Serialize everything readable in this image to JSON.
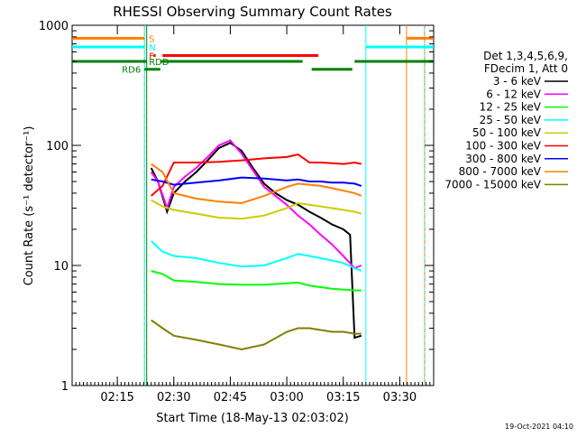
{
  "chart_data": {
    "type": "line",
    "title": "RHESSI Observing Summary Count Rates",
    "xlabel": "Start Time (18-May-13 02:03:02)",
    "ylabel": "Count Rate (s⁻¹ detector⁻¹)",
    "y_scale": "log",
    "ylim": [
      1,
      1000
    ],
    "xlim_minutes": [
      2.05,
      3.65
    ],
    "x_ticks": [
      {
        "value": 2.25,
        "label": "02:15"
      },
      {
        "value": 2.5,
        "label": "02:30"
      },
      {
        "value": 2.75,
        "label": "02:45"
      },
      {
        "value": 3.0,
        "label": "03:00"
      },
      {
        "value": 3.25,
        "label": "03:15"
      },
      {
        "value": 3.5,
        "label": "03:30"
      }
    ],
    "y_ticks": [
      {
        "value": 1,
        "label": "1"
      },
      {
        "value": 10,
        "label": "10"
      },
      {
        "value": 100,
        "label": "100"
      },
      {
        "value": 1000,
        "label": "1000"
      }
    ],
    "legend_header": [
      "Det 1,3,4,5,6,9,",
      "FDecim 1, Att 0"
    ],
    "legend_position": "right",
    "series": [
      {
        "name": "3 - 6 keV",
        "color": "#000000",
        "points": [
          [
            2.4,
            65
          ],
          [
            2.43,
            50
          ],
          [
            2.47,
            28
          ],
          [
            2.5,
            40
          ],
          [
            2.55,
            50
          ],
          [
            2.6,
            60
          ],
          [
            2.65,
            75
          ],
          [
            2.7,
            95
          ],
          [
            2.75,
            105
          ],
          [
            2.8,
            90
          ],
          [
            2.85,
            65
          ],
          [
            2.9,
            48
          ],
          [
            2.95,
            40
          ],
          [
            3.0,
            35
          ],
          [
            3.05,
            32
          ],
          [
            3.1,
            28
          ],
          [
            3.15,
            25
          ],
          [
            3.2,
            22
          ],
          [
            3.25,
            20
          ],
          [
            3.28,
            18
          ],
          [
            3.3,
            2.5
          ],
          [
            3.33,
            2.6
          ]
        ]
      },
      {
        "name": "6 - 12 keV",
        "color": "#ff00ff",
        "points": [
          [
            2.4,
            60
          ],
          [
            2.43,
            50
          ],
          [
            2.47,
            30
          ],
          [
            2.5,
            45
          ],
          [
            2.55,
            55
          ],
          [
            2.6,
            65
          ],
          [
            2.65,
            80
          ],
          [
            2.7,
            100
          ],
          [
            2.75,
            110
          ],
          [
            2.8,
            85
          ],
          [
            2.85,
            62
          ],
          [
            2.9,
            45
          ],
          [
            2.95,
            38
          ],
          [
            3.0,
            32
          ],
          [
            3.05,
            26
          ],
          [
            3.1,
            22
          ],
          [
            3.15,
            18
          ],
          [
            3.2,
            15
          ],
          [
            3.25,
            12
          ],
          [
            3.3,
            9.5
          ],
          [
            3.33,
            10
          ]
        ]
      },
      {
        "name": "12 - 25 keV",
        "color": "#00ff00",
        "points": [
          [
            2.4,
            9
          ],
          [
            2.45,
            8.5
          ],
          [
            2.5,
            7.5
          ],
          [
            2.6,
            7.3
          ],
          [
            2.7,
            7.0
          ],
          [
            2.8,
            6.9
          ],
          [
            2.9,
            6.9
          ],
          [
            3.0,
            7.1
          ],
          [
            3.05,
            7.2
          ],
          [
            3.1,
            6.8
          ],
          [
            3.15,
            6.6
          ],
          [
            3.2,
            6.4
          ],
          [
            3.25,
            6.3
          ],
          [
            3.3,
            6.2
          ],
          [
            3.33,
            6.2
          ]
        ]
      },
      {
        "name": "25 - 50 keV",
        "color": "#00ffff",
        "points": [
          [
            2.4,
            16
          ],
          [
            2.45,
            13
          ],
          [
            2.5,
            12
          ],
          [
            2.6,
            11.5
          ],
          [
            2.7,
            10.5
          ],
          [
            2.8,
            9.8
          ],
          [
            2.9,
            10
          ],
          [
            3.0,
            11.5
          ],
          [
            3.05,
            12.5
          ],
          [
            3.1,
            12
          ],
          [
            3.15,
            11.5
          ],
          [
            3.2,
            11
          ],
          [
            3.25,
            10.5
          ],
          [
            3.3,
            9.5
          ],
          [
            3.33,
            9
          ]
        ]
      },
      {
        "name": "50 - 100 keV",
        "color": "#cccc00",
        "points": [
          [
            2.4,
            35
          ],
          [
            2.45,
            31
          ],
          [
            2.5,
            29
          ],
          [
            2.6,
            27
          ],
          [
            2.7,
            25
          ],
          [
            2.8,
            24.5
          ],
          [
            2.9,
            26
          ],
          [
            3.0,
            30
          ],
          [
            3.05,
            33
          ],
          [
            3.1,
            32
          ],
          [
            3.15,
            31
          ],
          [
            3.2,
            30
          ],
          [
            3.25,
            29
          ],
          [
            3.3,
            28
          ],
          [
            3.33,
            27
          ]
        ]
      },
      {
        "name": "100 - 300 keV",
        "color": "#ff0000",
        "points": [
          [
            2.4,
            38
          ],
          [
            2.45,
            46
          ],
          [
            2.5,
            72
          ],
          [
            2.6,
            72
          ],
          [
            2.7,
            73
          ],
          [
            2.8,
            75
          ],
          [
            2.9,
            78
          ],
          [
            3.0,
            80
          ],
          [
            3.05,
            84
          ],
          [
            3.1,
            72
          ],
          [
            3.15,
            72
          ],
          [
            3.2,
            71
          ],
          [
            3.25,
            70
          ],
          [
            3.3,
            72
          ],
          [
            3.33,
            70
          ]
        ]
      },
      {
        "name": "300 - 800 keV",
        "color": "#0000ff",
        "points": [
          [
            2.4,
            52
          ],
          [
            2.45,
            50
          ],
          [
            2.5,
            47
          ],
          [
            2.6,
            49
          ],
          [
            2.7,
            51
          ],
          [
            2.8,
            54
          ],
          [
            2.9,
            53
          ],
          [
            3.0,
            51
          ],
          [
            3.05,
            52
          ],
          [
            3.1,
            50
          ],
          [
            3.15,
            50
          ],
          [
            3.2,
            49
          ],
          [
            3.25,
            49
          ],
          [
            3.3,
            48
          ],
          [
            3.33,
            46
          ]
        ]
      },
      {
        "name": "800 - 7000 keV",
        "color": "#ff8000",
        "points": [
          [
            2.4,
            70
          ],
          [
            2.45,
            60
          ],
          [
            2.5,
            40
          ],
          [
            2.6,
            36
          ],
          [
            2.7,
            34
          ],
          [
            2.8,
            33
          ],
          [
            2.9,
            38
          ],
          [
            3.0,
            45
          ],
          [
            3.05,
            48
          ],
          [
            3.1,
            47
          ],
          [
            3.15,
            46
          ],
          [
            3.2,
            44
          ],
          [
            3.25,
            42
          ],
          [
            3.3,
            40
          ],
          [
            3.33,
            38
          ]
        ]
      },
      {
        "name": "7000 - 15000 keV",
        "color": "#808000",
        "points": [
          [
            2.4,
            3.5
          ],
          [
            2.45,
            3.0
          ],
          [
            2.5,
            2.6
          ],
          [
            2.6,
            2.4
          ],
          [
            2.7,
            2.2
          ],
          [
            2.8,
            2.0
          ],
          [
            2.9,
            2.2
          ],
          [
            3.0,
            2.8
          ],
          [
            3.05,
            3.0
          ],
          [
            3.1,
            3.0
          ],
          [
            3.15,
            2.9
          ],
          [
            3.2,
            2.8
          ],
          [
            3.25,
            2.8
          ],
          [
            3.3,
            2.7
          ],
          [
            3.33,
            2.7
          ]
        ]
      }
    ],
    "state_bars": [
      {
        "label": "S",
        "color": "#ff8000",
        "y": 780,
        "segments": [
          [
            2.05,
            2.37
          ],
          [
            3.53,
            3.65
          ]
        ]
      },
      {
        "label": "N",
        "color": "#00ffff",
        "y": 660,
        "segments": [
          [
            2.05,
            2.37
          ],
          [
            3.35,
            3.65
          ]
        ]
      },
      {
        "label": "F",
        "color": "#ff0000",
        "y": 560,
        "segments": [
          [
            2.41,
            2.42
          ],
          [
            2.45,
            3.14
          ]
        ]
      },
      {
        "label": "RDD",
        "color": "#008000",
        "y": 500,
        "segments": [
          [
            2.05,
            2.38
          ],
          [
            2.44,
            3.07
          ],
          [
            3.3,
            3.65
          ]
        ]
      },
      {
        "label": "RD6",
        "color": "#008000",
        "y": 430,
        "segments": [
          [
            2.37,
            2.44
          ],
          [
            3.11,
            3.29
          ]
        ]
      }
    ],
    "vertical_markers": [
      {
        "x": 2.37,
        "color": "#ff8000",
        "style": "dashed"
      },
      {
        "x": 2.37,
        "color": "#00ffff",
        "style": "solid"
      },
      {
        "x": 3.35,
        "color": "#00ffff",
        "style": "solid"
      },
      {
        "x": 3.53,
        "color": "#ff8000",
        "style": "solid"
      },
      {
        "x": 3.61,
        "color": "#00ffff",
        "style": "solid"
      },
      {
        "x": 3.61,
        "color": "#ff8000",
        "style": "dashed"
      },
      {
        "x": 2.38,
        "color": "#008000",
        "style": "solid"
      }
    ],
    "timestamp": "19-Oct-2021 04:10"
  }
}
